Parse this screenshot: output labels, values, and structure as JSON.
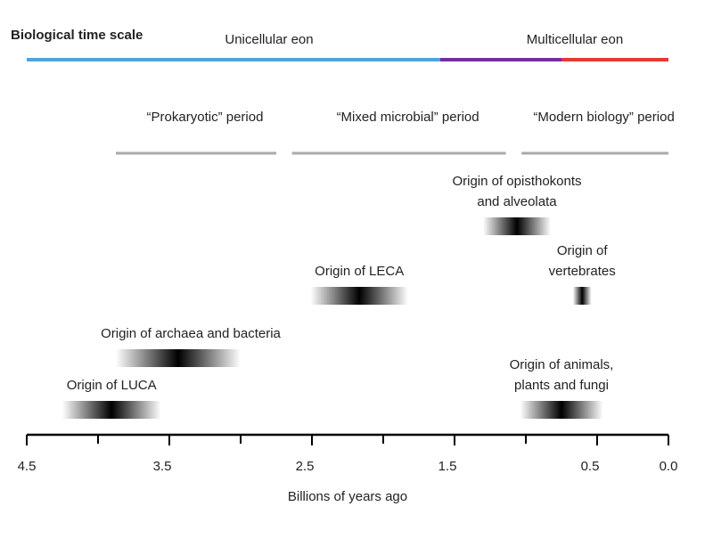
{
  "chart_data": {
    "type": "timeline",
    "title": "Biological time scale",
    "x_label": "Billions of years ago",
    "xlim": [
      4.5,
      0
    ],
    "xticks": [
      4.5,
      3.5,
      2.5,
      1.5,
      0.5,
      {
        "value": 0,
        "label": "0.0"
      }
    ],
    "xminorticks": [
      4,
      3,
      2,
      1
    ],
    "eons": [
      {
        "name": "Unicellular eon",
        "color": "#4ea5d9",
        "range": [
          4.5,
          1.6
        ]
      },
      {
        "name": "Multicellular eon",
        "color": "#e53935",
        "range": [
          0.75,
          0
        ]
      }
    ],
    "transition": {
      "color": "#7030a0",
      "range": [
        1.6,
        0.75
      ]
    },
    "period_color": "#aaaaaa",
    "periods": [
      {
        "name": "“Prokaryotic” period",
        "range": [
          3.875,
          2.75
        ]
      },
      {
        "name": "“Mixed microbial” period",
        "range": [
          2.64,
          1.14
        ]
      },
      {
        "name": "“Modern biology” period",
        "range": [
          1.03,
          0
        ]
      }
    ],
    "events": [
      {
        "label": [
          "Origin of LUCA"
        ],
        "range": [
          4.25,
          3.56
        ]
      },
      {
        "label": [
          "Origin of archaea and bacteria"
        ],
        "range": [
          3.875,
          3.0
        ]
      },
      {
        "label": [
          "Origin of LECA"
        ],
        "range": [
          2.51,
          1.825
        ]
      },
      {
        "label": [
          "Origin of opisthokonts",
          "and alveolata"
        ],
        "range": [
          1.3,
          0.825
        ]
      },
      {
        "label": [
          "Origin of",
          "vertebrates"
        ],
        "range": [
          0.67,
          0.54
        ]
      },
      {
        "label": [
          "Origin of animals,",
          "plants and fungi"
        ],
        "range": [
          1.04,
          0.46
        ]
      }
    ]
  }
}
